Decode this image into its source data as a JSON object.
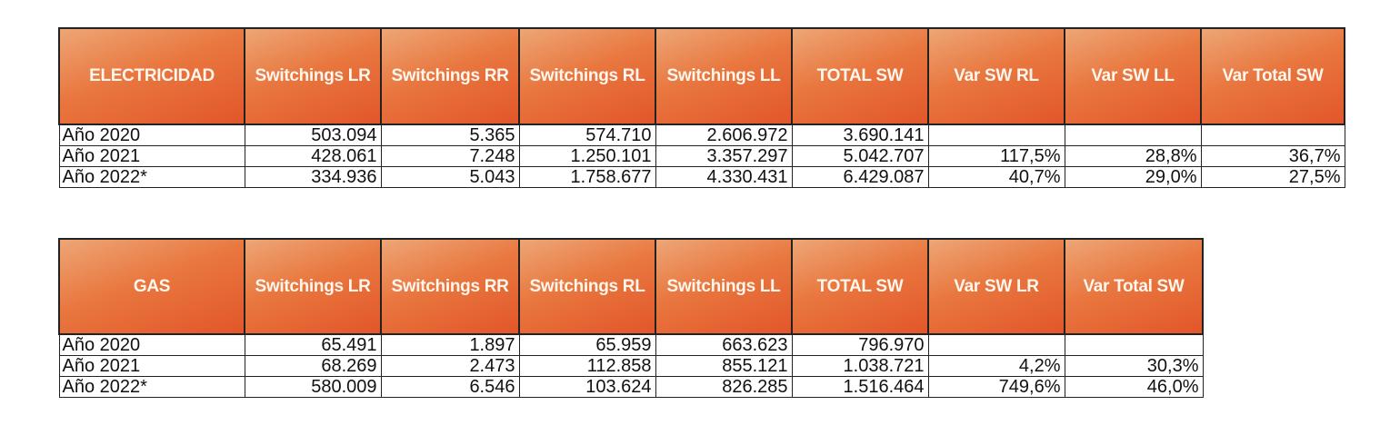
{
  "electricidad": {
    "headers": [
      "ELECTRICIDAD",
      "Switchings LR",
      "Switchings RR",
      "Switchings RL",
      "Switchings LL",
      "TOTAL SW",
      "Var SW RL",
      "Var SW LL",
      "Var Total SW"
    ],
    "rows": [
      [
        "Año 2020",
        "503.094",
        "5.365",
        "574.710",
        "2.606.972",
        "3.690.141",
        "",
        "",
        ""
      ],
      [
        "Año 2021",
        "428.061",
        "7.248",
        "1.250.101",
        "3.357.297",
        "5.042.707",
        "117,5%",
        "28,8%",
        "36,7%"
      ],
      [
        "Año 2022*",
        "334.936",
        "5.043",
        "1.758.677",
        "4.330.431",
        "6.429.087",
        "40,7%",
        "29,0%",
        "27,5%"
      ]
    ]
  },
  "gas": {
    "headers": [
      "GAS",
      "Switchings LR",
      "Switchings RR",
      "Switchings RL",
      "Switchings LL",
      "TOTAL SW",
      "Var SW LR",
      "Var Total SW"
    ],
    "rows": [
      [
        "Año 2020",
        "65.491",
        "1.897",
        "65.959",
        "663.623",
        "796.970",
        "",
        ""
      ],
      [
        "Año 2021",
        "68.269",
        "2.473",
        "112.858",
        "855.121",
        "1.038.721",
        "4,2%",
        "30,3%"
      ],
      [
        "Año 2022*",
        "580.009",
        "6.546",
        "103.624",
        "826.285",
        "1.516.464",
        "749,6%",
        "46,0%"
      ]
    ]
  },
  "colors": {
    "header_orange": "#e9773f",
    "header_text": "#ffffff"
  }
}
